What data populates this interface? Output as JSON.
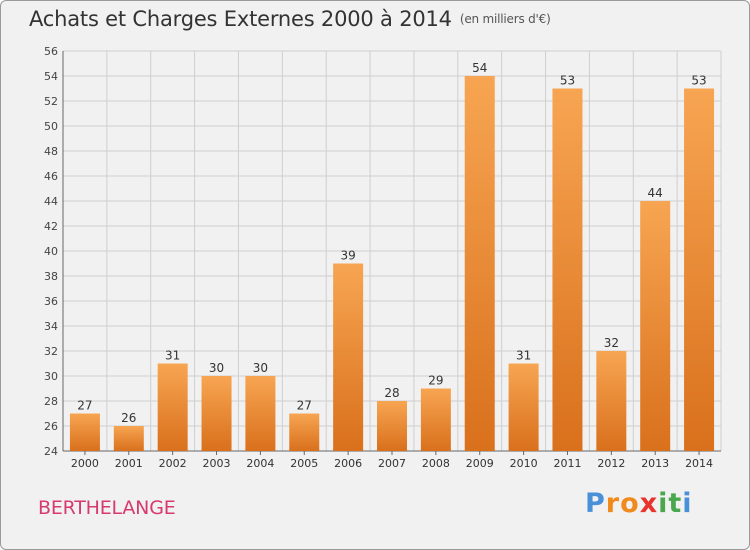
{
  "header": {
    "title": "Achats et Charges Externes 2000 à 2014",
    "unit": "(en milliers d'€)"
  },
  "footer": {
    "commune": "BERTHELANGE",
    "logo_letters": [
      "P",
      "r",
      "o",
      "x",
      "i",
      "t",
      "i"
    ]
  },
  "colors": {
    "bar_light": "#f7a552",
    "bar_dark": "#d9701c",
    "commune_text": "#d63a6e",
    "logo": [
      "#4a90d9",
      "#f08a1c",
      "#f08a1c",
      "#e8342c",
      "#4aa84c",
      "#4aa84c",
      "#4a90d9"
    ]
  },
  "chart_data": {
    "type": "bar",
    "categories": [
      "2000",
      "2001",
      "2002",
      "2003",
      "2004",
      "2005",
      "2006",
      "2007",
      "2008",
      "2009",
      "2010",
      "2011",
      "2012",
      "2013",
      "2014"
    ],
    "values": [
      27,
      26,
      31,
      30,
      30,
      27,
      39,
      28,
      29,
      54,
      31,
      53,
      32,
      44,
      53
    ],
    "ylim": [
      24,
      56
    ],
    "yticks": [
      24,
      26,
      28,
      30,
      32,
      34,
      36,
      38,
      40,
      42,
      44,
      46,
      48,
      50,
      52,
      54,
      56
    ],
    "grid": true
  }
}
